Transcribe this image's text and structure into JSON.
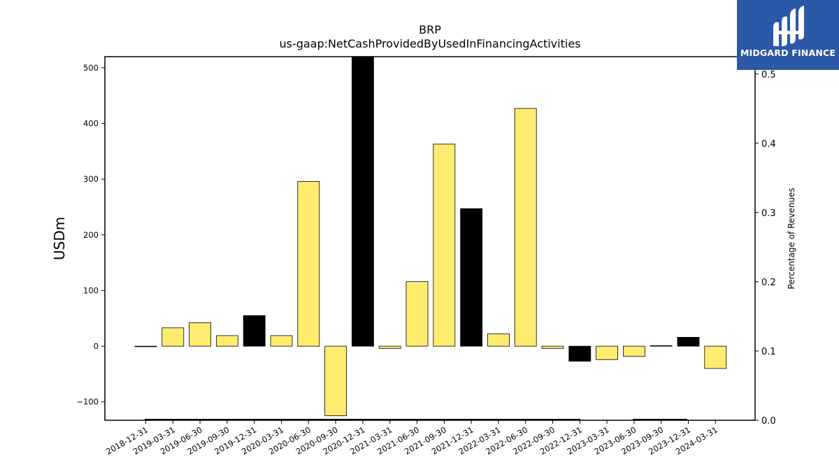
{
  "chart_data": {
    "type": "bar",
    "title": "BRP",
    "subtitle": "us-gaap:NetCashProvidedByUsedInFinancingActivities",
    "ylabel": "USDm",
    "y2label": "Percentage of Revenues",
    "ylim": [
      -133,
      520
    ],
    "y2lim": [
      0.0,
      0.525
    ],
    "yticks": [
      -100,
      0,
      100,
      200,
      300,
      400,
      500
    ],
    "y2ticks": [
      0.0,
      0.1,
      0.2,
      0.3,
      0.4,
      0.5
    ],
    "categories": [
      "2018-12-31",
      "2019-03-31",
      "2019-06-30",
      "2019-09-30",
      "2019-12-31",
      "2020-03-31",
      "2020-06-30",
      "2020-09-30",
      "2020-12-31",
      "2021-03-31",
      "2021-06-30",
      "2021-09-30",
      "2021-12-31",
      "2022-03-31",
      "2022-06-30",
      "2022-09-30",
      "2022-12-31",
      "2023-03-31",
      "2023-06-30",
      "2023-09-30",
      "2023-12-31",
      "2024-03-31"
    ],
    "values": [
      0,
      33,
      42,
      19,
      55,
      19,
      296,
      -125,
      520,
      -4,
      116,
      363,
      247,
      22,
      427,
      -4,
      -27,
      -24,
      -18,
      1,
      16,
      -40
    ],
    "colors": [
      "#000000",
      "#ffec6e",
      "#ffec6e",
      "#ffec6e",
      "#000000",
      "#ffec6e",
      "#ffec6e",
      "#ffec6e",
      "#000000",
      "#ffec6e",
      "#ffec6e",
      "#ffec6e",
      "#000000",
      "#ffec6e",
      "#ffec6e",
      "#ffec6e",
      "#000000",
      "#ffec6e",
      "#ffec6e",
      "#000000",
      "#000000",
      "#ffec6e"
    ],
    "grid": false,
    "legend": "none"
  },
  "logo": {
    "text": "MIDGARD FINANCE",
    "background": "#2b58a7"
  }
}
